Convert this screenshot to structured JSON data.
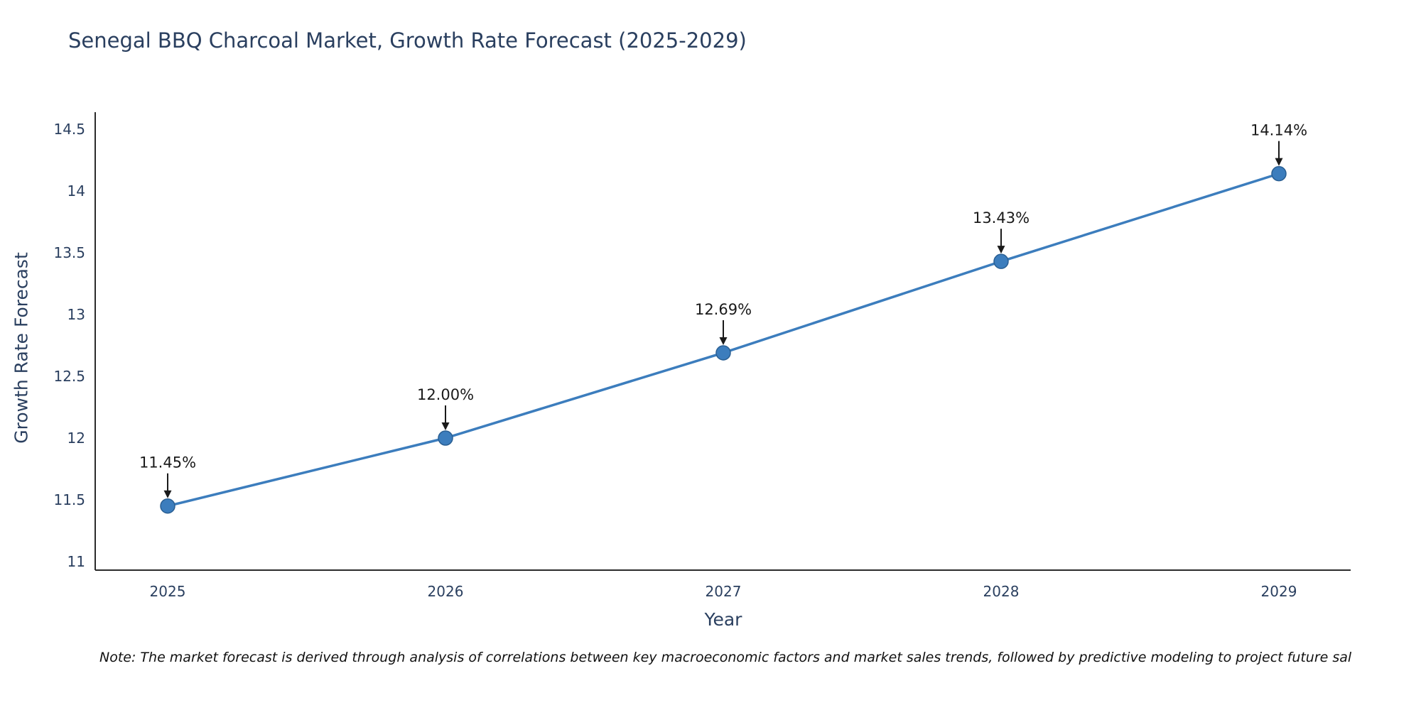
{
  "note": "Note: The market forecast is derived through analysis of correlations between key macroeconomic factors and market sales trends, followed by predictive modeling to project future sal",
  "chart_data": {
    "type": "line",
    "title": "Senegal BBQ Charcoal Market, Growth Rate Forecast (2025-2029)",
    "xlabel": "Year",
    "ylabel": "Growth Rate Forecast",
    "categories": [
      "2025",
      "2026",
      "2027",
      "2028",
      "2029"
    ],
    "values": [
      11.45,
      12.0,
      12.69,
      13.43,
      14.14
    ],
    "point_labels": [
      "11.45%",
      "12.00%",
      "12.69%",
      "13.43%",
      "14.14%"
    ],
    "yticks": [
      11,
      11.5,
      12,
      12.5,
      13,
      13.5,
      14,
      14.5
    ],
    "ytick_labels": [
      "11",
      "11.5",
      "12",
      "12.5",
      "13",
      "13.5",
      "14",
      "14.5"
    ],
    "ylim": [
      11,
      14.5
    ],
    "grid": false,
    "legend": "none",
    "line_color": "#3c7dbd",
    "marker_color": "#3c7dbd",
    "marker_edge_color": "#2a5f93",
    "axis_color": "#2b2b2b",
    "tick_color": "#2a3f5f",
    "annotation_color": "#1a1a1a",
    "title_color": "#2a3f5f"
  }
}
